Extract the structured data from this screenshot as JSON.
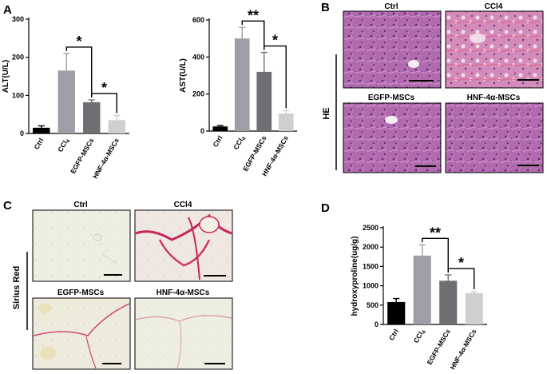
{
  "panels": {
    "a": "A",
    "b": "B",
    "c": "C",
    "d": "D"
  },
  "chart_data": [
    {
      "id": "alt",
      "type": "bar",
      "ylabel": "ALT(U/L)",
      "ylim": [
        0,
        300
      ],
      "yticks": [
        0,
        100,
        200,
        300
      ],
      "categories": [
        "Ctrl",
        "CCl4",
        "EGFP-MSCs",
        "HNF-4α-MSCs"
      ],
      "values": [
        15,
        165,
        82,
        35
      ],
      "errors": [
        5,
        45,
        6,
        12
      ],
      "colors": [
        "#000000",
        "#9e9ea6",
        "#6f6f73",
        "#cfcfcf"
      ],
      "significance": [
        {
          "from": 1,
          "to": 2,
          "label": "*"
        },
        {
          "from": 2,
          "to": 3,
          "label": "*"
        }
      ]
    },
    {
      "id": "ast",
      "type": "bar",
      "ylabel": "AST(U/L)",
      "ylim": [
        0,
        600
      ],
      "yticks": [
        0,
        200,
        400,
        600
      ],
      "categories": [
        "Ctrl",
        "CCl4",
        "EGFP-MSCs",
        "HNF-4α-MSCs"
      ],
      "values": [
        25,
        500,
        320,
        95
      ],
      "errors": [
        5,
        60,
        105,
        15
      ],
      "colors": [
        "#000000",
        "#9e9ea6",
        "#6f6f73",
        "#cfcfcf"
      ],
      "significance": [
        {
          "from": 1,
          "to": 2,
          "label": "**"
        },
        {
          "from": 2,
          "to": 3,
          "label": "*"
        }
      ]
    },
    {
      "id": "hyp",
      "type": "bar",
      "ylabel": "hydroxyproline(ug/g)",
      "ylim": [
        0,
        2500
      ],
      "yticks": [
        0,
        500,
        1000,
        1500,
        2000,
        2500
      ],
      "categories": [
        "Ctrl",
        "CCl4",
        "EGFP-MSCs",
        "HNF-4α-MSCs"
      ],
      "values": [
        580,
        1780,
        1130,
        810
      ],
      "errors": [
        90,
        280,
        150,
        40
      ],
      "colors": [
        "#000000",
        "#9e9ea6",
        "#6f6f73",
        "#cfcfcf"
      ],
      "significance": [
        {
          "from": 1,
          "to": 2,
          "label": "**"
        },
        {
          "from": 2,
          "to": 3,
          "label": "*"
        }
      ]
    }
  ],
  "histology": {
    "he": {
      "stain": "HE",
      "images": [
        {
          "title": "Ctrl",
          "texture": "he-normal"
        },
        {
          "title": "CCl4",
          "texture": "he-damaged"
        },
        {
          "title": "EGFP-MSCs",
          "texture": "he-normal"
        },
        {
          "title": "HNF-4α-MSCs",
          "texture": "he-normal"
        }
      ]
    },
    "sirius": {
      "stain": "Sirius Red",
      "images": [
        {
          "title": "Ctrl",
          "texture": "sr-light"
        },
        {
          "title": "CCl4",
          "texture": "sr-heavy"
        },
        {
          "title": "EGFP-MSCs",
          "texture": "sr-medium"
        },
        {
          "title": "HNF-4α-MSCs",
          "texture": "sr-light"
        }
      ]
    }
  },
  "colors": {
    "he_base": "#b668b0",
    "he_damaged": "#d98ab8",
    "sirius_base": "#ececdf",
    "sirius_red": "#c8245a"
  }
}
